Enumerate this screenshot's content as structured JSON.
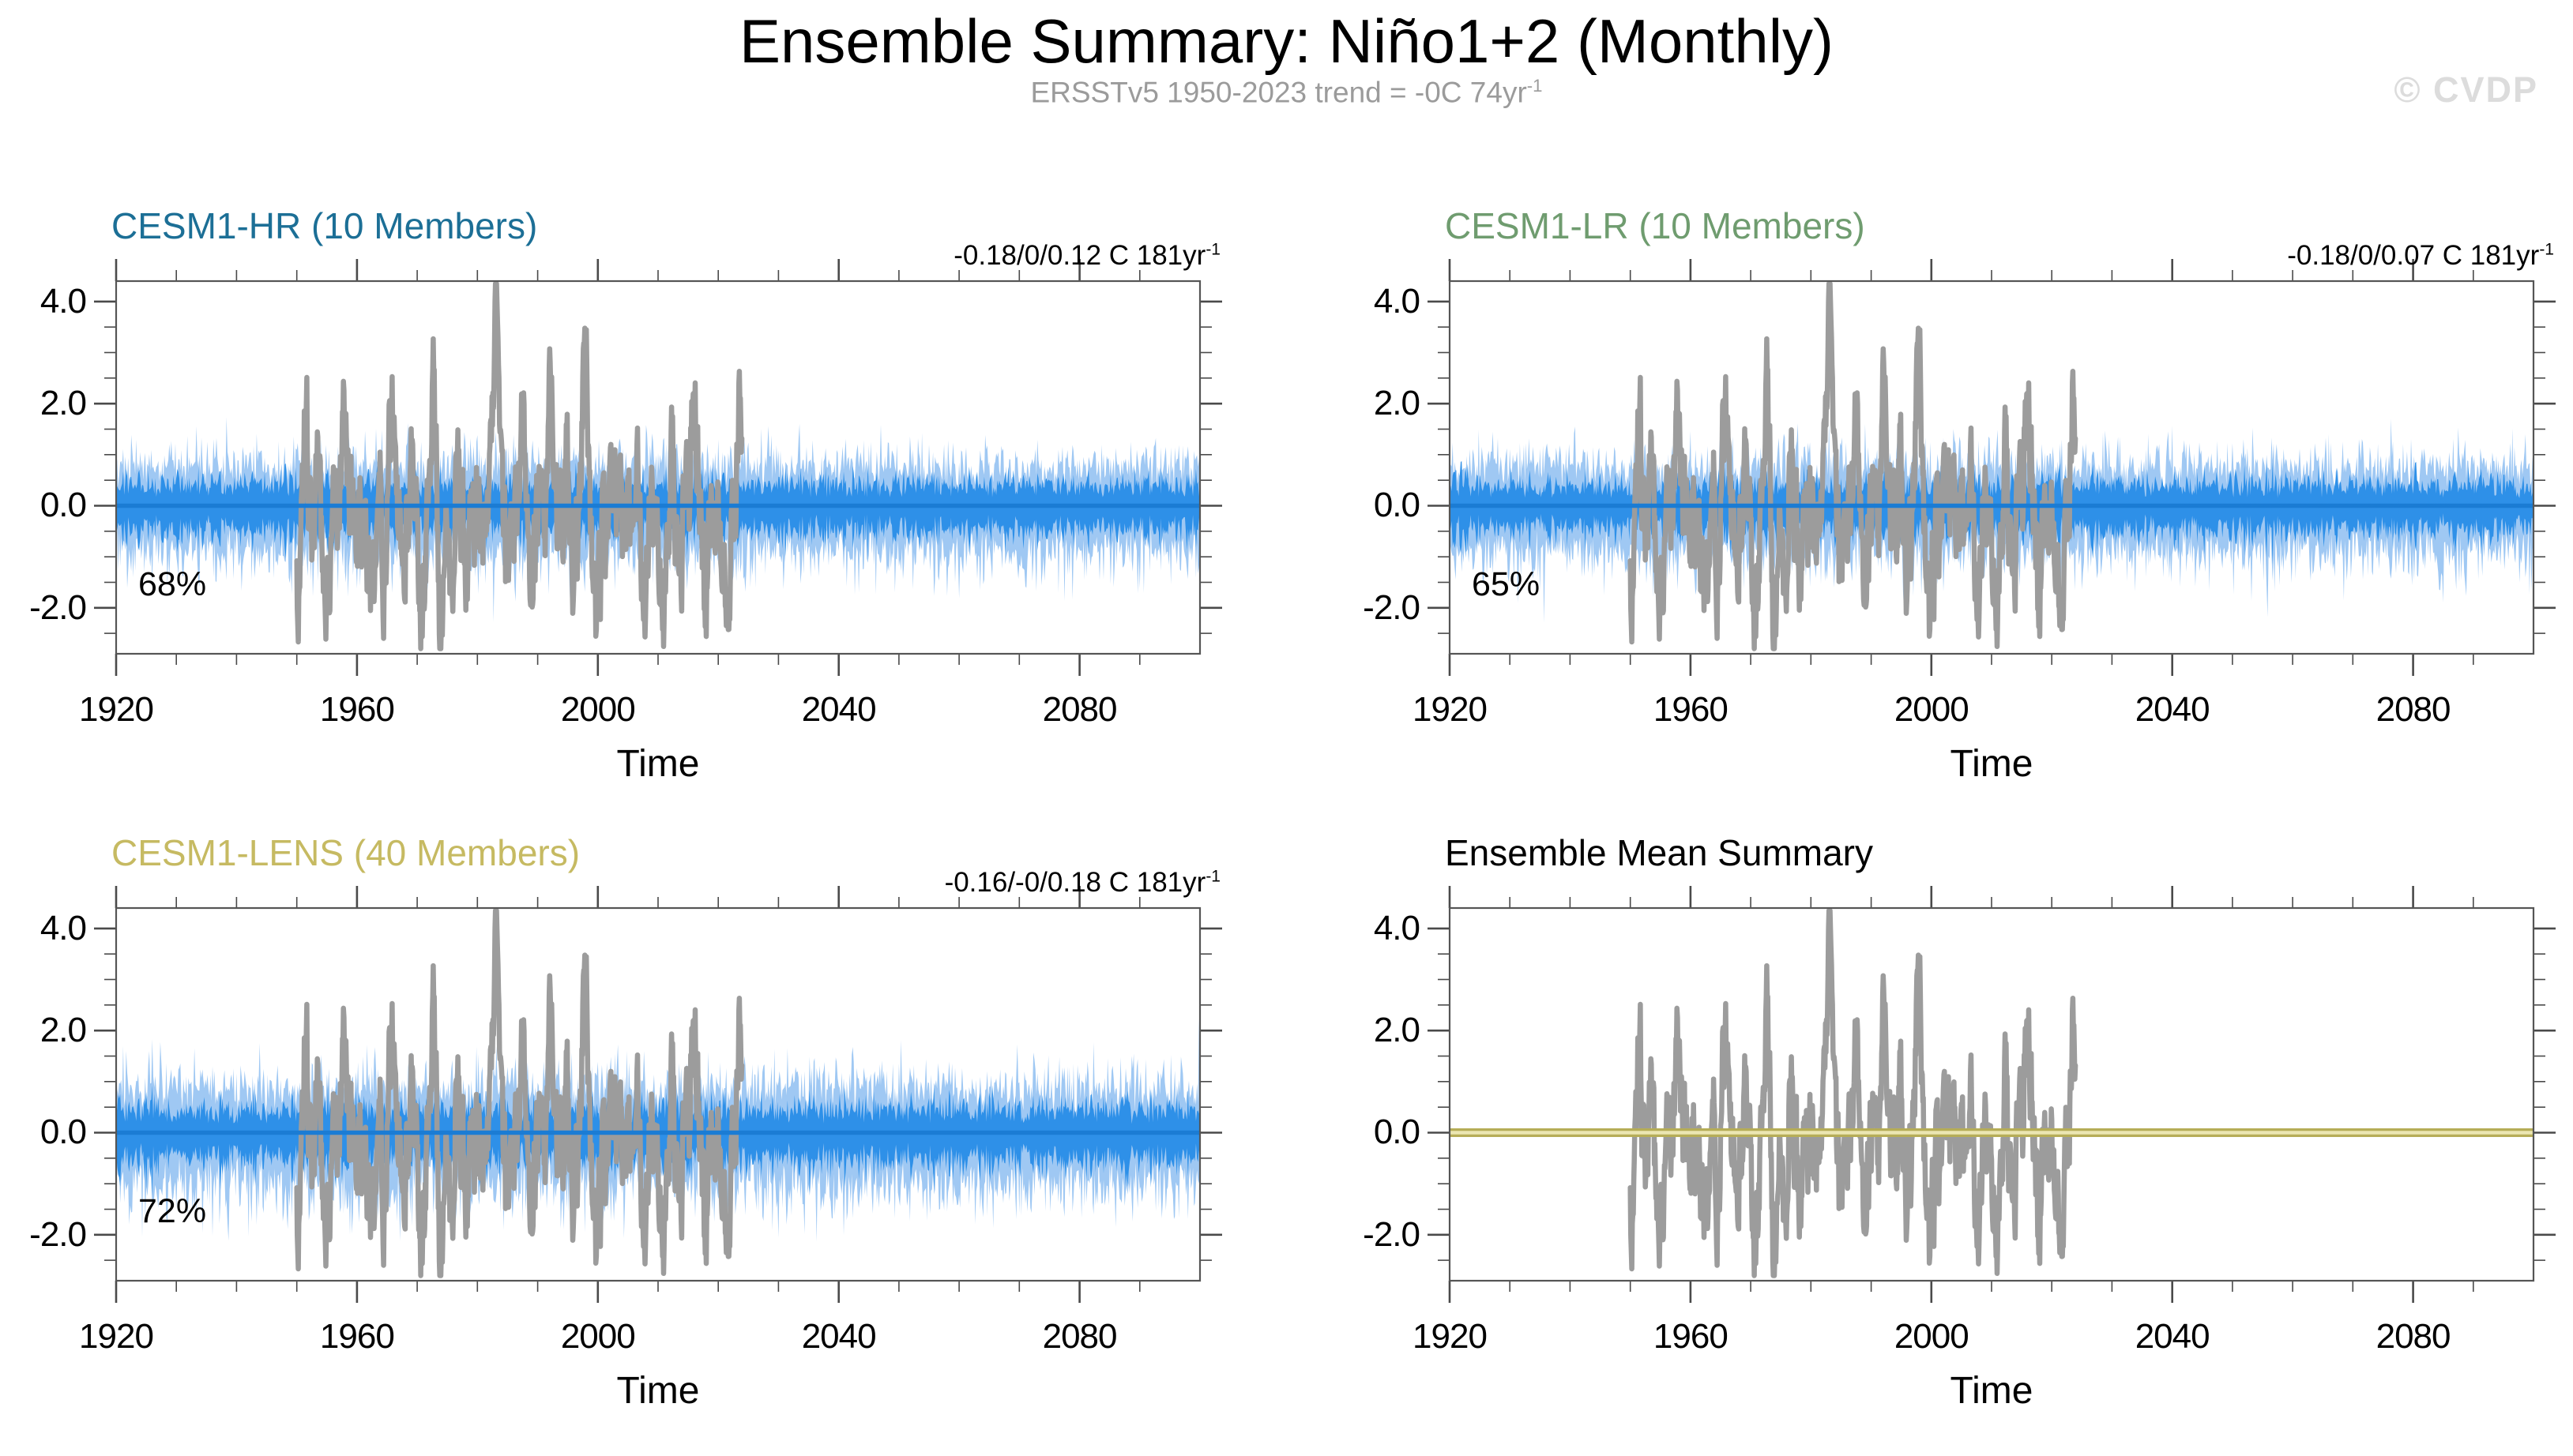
{
  "page": {
    "title": "Ensemble Summary: Niño1+2 (Monthly)",
    "subtitle_main": "ERSSTv5 1950-2023 trend = -0C 74yr",
    "subtitle_sup": "-1",
    "watermark": "© CVDP",
    "background": "#ffffff"
  },
  "axes": {
    "x": {
      "label": "Time",
      "min": 1920,
      "max": 2100,
      "major_ticks": [
        1920,
        1960,
        2000,
        2040,
        2080
      ],
      "minor_step": 10
    },
    "y": {
      "min": -2.9,
      "max": 4.4,
      "major_ticks": [
        4.0,
        2.0,
        0.0,
        -2.0
      ],
      "major_tick_labels": [
        "4.0",
        "2.0",
        "0.0",
        "-2.0"
      ],
      "minor_step": 0.5,
      "grid": false
    }
  },
  "observation": {
    "name": "ERSSTv5 monthly Niño1+2 SST anomalies",
    "color": "#9c9c9c",
    "period_start": 1950,
    "period_end": 2023,
    "value_range": [
      -2.8,
      4.35
    ],
    "el_nino_peaks": [
      [
        1951.5,
        1.6,
        4
      ],
      [
        1953.4,
        1.2,
        4
      ],
      [
        1957.9,
        2.0,
        5
      ],
      [
        1963.7,
        1.0,
        3
      ],
      [
        1965.8,
        1.9,
        5
      ],
      [
        1969.3,
        1.3,
        4
      ],
      [
        1972.8,
        2.5,
        5
      ],
      [
        1976.5,
        1.6,
        4
      ],
      [
        1983.0,
        4.2,
        5
      ],
      [
        1987.6,
        1.9,
        5
      ],
      [
        1992.1,
        2.1,
        4
      ],
      [
        1994.9,
        1.2,
        3
      ],
      [
        1997.9,
        4.2,
        5
      ],
      [
        2002.9,
        1.1,
        3
      ],
      [
        2006.9,
        1.3,
        3
      ],
      [
        2012.3,
        1.4,
        3
      ],
      [
        2015.9,
        2.8,
        5
      ],
      [
        2023.6,
        2.9,
        4
      ]
    ],
    "la_nina_dips": [
      [
        1950.2,
        -1.4,
        5
      ],
      [
        1954.8,
        -1.7,
        8
      ],
      [
        1962.3,
        -1.3,
        5
      ],
      [
        1964.5,
        -1.5,
        4
      ],
      [
        1967.7,
        -1.2,
        5
      ],
      [
        1970.8,
        -1.9,
        6
      ],
      [
        1973.9,
        -2.2,
        5
      ],
      [
        1975.8,
        -2.0,
        5
      ],
      [
        1978.3,
        -1.3,
        4
      ],
      [
        1985.2,
        -1.5,
        5
      ],
      [
        1988.8,
        -2.1,
        6
      ],
      [
        1996.2,
        -1.3,
        4
      ],
      [
        1999.6,
        -2.0,
        7
      ],
      [
        2007.6,
        -1.8,
        5
      ],
      [
        2010.8,
        -1.9,
        6
      ],
      [
        2013.5,
        -1.4,
        4
      ],
      [
        2018.0,
        -1.6,
        5
      ],
      [
        2021.5,
        -1.7,
        6
      ]
    ]
  },
  "chart_data": [
    {
      "id": "cesm1-hr",
      "type": "line",
      "title": "CESM1-HR (10 Members)",
      "title_color": "#1c6f96",
      "members": 10,
      "trend_main": "-0.18/0/0.12 C 181yr",
      "trend_sup": "-1",
      "percent_label": "68%",
      "x_range": [
        1920,
        2100
      ],
      "seed": 101,
      "amp_scale": 1.0,
      "band_outer": {
        "name": "member min-max spread",
        "color": "#9fc8f3",
        "typical_top": 0.9,
        "max_top": 2.0,
        "typical_bottom": 1.1,
        "max_bottom": 2.6
      },
      "band_inner": {
        "name": "member core spread",
        "color": "#2e90e8",
        "typical": 0.5,
        "max": 1.0
      },
      "mean_line": {
        "name": "ensemble mean",
        "color": "#1b7cd4",
        "value": 0.0
      },
      "show_observation": true
    },
    {
      "id": "cesm1-lr",
      "type": "line",
      "title": "CESM1-LR (10 Members)",
      "title_color": "#6f9c6f",
      "members": 10,
      "trend_main": "-0.18/0/0.07 C 181yr",
      "trend_sup": "-1",
      "percent_label": "65%",
      "x_range": [
        1920,
        2100
      ],
      "seed": 202,
      "amp_scale": 1.0,
      "band_outer": {
        "name": "member min-max spread",
        "color": "#9fc8f3",
        "typical_top": 0.9,
        "max_top": 2.0,
        "typical_bottom": 1.1,
        "max_bottom": 2.6
      },
      "band_inner": {
        "name": "member core spread",
        "color": "#2e90e8",
        "typical": 0.5,
        "max": 1.0
      },
      "mean_line": {
        "name": "ensemble mean",
        "color": "#1b7cd4",
        "value": 0.0
      },
      "show_observation": true
    },
    {
      "id": "cesm1-lens",
      "type": "line",
      "title": "CESM1-LENS (40 Members)",
      "title_color": "#c6ba62",
      "members": 40,
      "trend_main": "-0.16/-0/0.18 C 181yr",
      "trend_sup": "-1",
      "percent_label": "72%",
      "x_range": [
        1920,
        2100
      ],
      "seed": 303,
      "amp_scale": 1.12,
      "band_outer": {
        "name": "member min-max spread",
        "color": "#9fc8f3",
        "typical_top": 1.0,
        "max_top": 2.2,
        "typical_bottom": 1.2,
        "max_bottom": 2.7
      },
      "band_inner": {
        "name": "member core spread",
        "color": "#2e90e8",
        "typical": 0.55,
        "max": 1.1
      },
      "mean_line": {
        "name": "ensemble mean",
        "color": "#1b7cd4",
        "value": 0.0
      },
      "show_observation": true
    },
    {
      "id": "ensemble-mean-summary",
      "type": "line",
      "title": "Ensemble Mean Summary",
      "title_color": "#000000",
      "x_range": [
        1920,
        2100
      ],
      "mean_band": {
        "name": "overlapping ensemble means (CESM1-HR / CESM1-LR / CESM1-LENS) at 0",
        "edge_color": "#b6ad57",
        "core_color": "#ebe6b2",
        "value": 0.0
      },
      "show_observation": true
    }
  ]
}
